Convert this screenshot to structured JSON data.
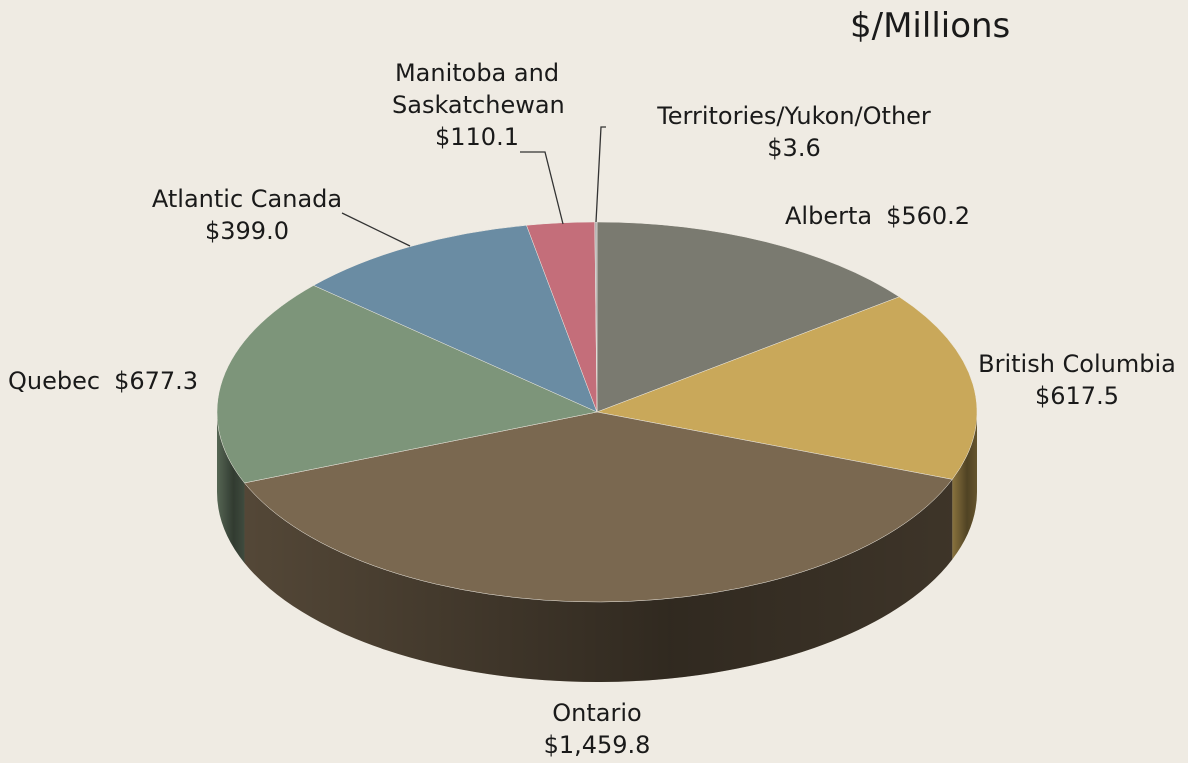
{
  "chart_data": {
    "type": "pie",
    "title": "$/Millions",
    "categories": [
      "Alberta",
      "British Columbia",
      "Ontario",
      "Quebec",
      "Atlantic Canada",
      "Manitoba and Saskatchewan",
      "Territories/Yukon/Other"
    ],
    "values": [
      560.2,
      617.5,
      1459.8,
      677.3,
      399.0,
      110.1,
      3.6
    ],
    "value_labels": [
      "$560.2",
      "$617.5",
      "$1,459.8",
      "$677.3",
      "$399.0",
      "$110.1",
      "$3.6"
    ],
    "colors": [
      "#7a7a70",
      "#c9a85a",
      "#7a6850",
      "#7d957a",
      "#6a8ca3",
      "#c46e7a",
      "#b0b0b0"
    ]
  }
}
